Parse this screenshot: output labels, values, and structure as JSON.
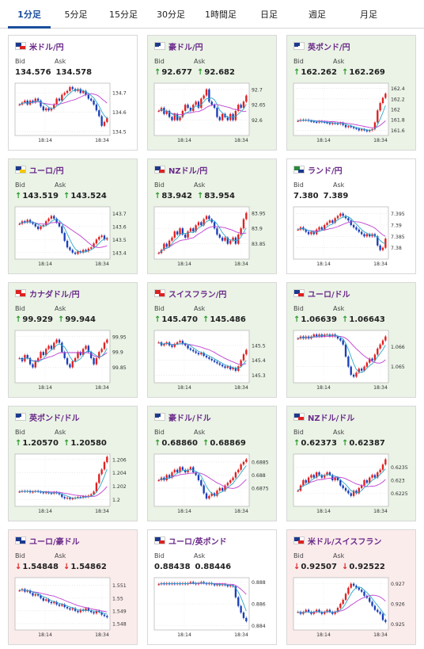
{
  "tabs": [
    {
      "label": "1分足",
      "active": true
    },
    {
      "label": "5分足",
      "active": false
    },
    {
      "label": "15分足",
      "active": false
    },
    {
      "label": "30分足",
      "active": false
    },
    {
      "label": "1時間足",
      "active": false
    },
    {
      "label": "日足",
      "active": false
    },
    {
      "label": "週足",
      "active": false
    },
    {
      "label": "月足",
      "active": false
    }
  ],
  "labels": {
    "bid": "Bid",
    "ask": "Ask"
  },
  "colors": {
    "up_candle": "#e02020",
    "down_candle": "#1a3fb8",
    "ma_short": "#2aa8c8",
    "ma_long": "#c040d0",
    "up_bg": "#eaf3e6",
    "down_bg": "#fbecec"
  },
  "cards": [
    {
      "pair": "米ドル/円",
      "flag": [
        "#1b3a8c",
        "#ffffff",
        "#d22"
      ],
      "trend": "none",
      "bid": "134.576",
      "ask": "134.578",
      "chart_data": {
        "type": "candlestick",
        "x_ticks": [
          "18:14",
          "18:34"
        ],
        "y_ticks": [
          "134.7",
          "134.6",
          "134.5"
        ],
        "y_range": [
          134.48,
          134.75
        ],
        "closes": [
          134.64,
          134.65,
          134.66,
          134.64,
          134.66,
          134.65,
          134.67,
          134.66,
          134.63,
          134.61,
          134.62,
          134.61,
          134.62,
          134.64,
          134.67,
          134.66,
          134.69,
          134.7,
          134.71,
          134.73,
          134.72,
          134.71,
          134.72,
          134.7,
          134.71,
          134.69,
          134.67,
          134.66,
          134.64,
          134.61,
          134.58,
          134.53,
          134.55,
          134.57
        ]
      }
    },
    {
      "pair": "豪ドル/円",
      "flag": [
        "#1b3a8c",
        "#1b3a8c",
        "#ffffff"
      ],
      "trend": "up",
      "bid": "92.677",
      "ask": "92.682",
      "chart_data": {
        "type": "candlestick",
        "x_ticks": [
          "18:14",
          "18:34"
        ],
        "y_ticks": [
          "92.7",
          "92.65",
          "92.6"
        ],
        "y_range": [
          92.55,
          92.72
        ],
        "closes": [
          92.63,
          92.64,
          92.62,
          92.63,
          92.61,
          92.6,
          92.62,
          92.6,
          92.61,
          92.63,
          92.65,
          92.64,
          92.63,
          92.65,
          92.66,
          92.64,
          92.67,
          92.68,
          92.7,
          92.66,
          92.65,
          92.64,
          92.61,
          92.6,
          92.62,
          92.61,
          92.6,
          92.62,
          92.6,
          92.63,
          92.65,
          92.64,
          92.66,
          92.68
        ]
      }
    },
    {
      "pair": "英ポンド/円",
      "flag": [
        "#1b3a8c",
        "#d22",
        "#ffffff"
      ],
      "trend": "up",
      "bid": "162.262",
      "ask": "162.269",
      "chart_data": {
        "type": "candlestick",
        "x_ticks": [
          "18:14",
          "18:34"
        ],
        "y_ticks": [
          "162.4",
          "162.2",
          "162",
          "161.8",
          "161.6"
        ],
        "y_range": [
          161.5,
          162.5
        ],
        "closes": [
          161.78,
          161.8,
          161.79,
          161.8,
          161.78,
          161.77,
          161.76,
          161.75,
          161.77,
          161.76,
          161.75,
          161.74,
          161.72,
          161.74,
          161.73,
          161.72,
          161.74,
          161.7,
          161.66,
          161.68,
          161.66,
          161.64,
          161.63,
          161.6,
          161.62,
          161.6,
          161.58,
          161.6,
          161.62,
          161.75,
          161.98,
          162.12,
          162.22,
          162.3
        ]
      }
    },
    {
      "pair": "ユーロ/円",
      "flag": [
        "#1b3a8c",
        "#1b3a8c",
        "#f0c800"
      ],
      "trend": "up",
      "bid": "143.519",
      "ask": "143.524",
      "chart_data": {
        "type": "candlestick",
        "x_ticks": [
          "18:14",
          "18:34"
        ],
        "y_ticks": [
          "143.7",
          "143.6",
          "143.5",
          "143.4"
        ],
        "y_range": [
          143.35,
          143.75
        ],
        "closes": [
          143.62,
          143.64,
          143.63,
          143.65,
          143.63,
          143.62,
          143.6,
          143.58,
          143.6,
          143.61,
          143.64,
          143.66,
          143.68,
          143.66,
          143.63,
          143.6,
          143.55,
          143.49,
          143.44,
          143.42,
          143.4,
          143.39,
          143.41,
          143.4,
          143.42,
          143.41,
          143.43,
          143.44,
          143.47,
          143.5,
          143.52,
          143.53,
          143.5,
          143.51
        ]
      }
    },
    {
      "pair": "NZドル/円",
      "flag": [
        "#1b3a8c",
        "#1b3a8c",
        "#d22"
      ],
      "trend": "up",
      "bid": "83.942",
      "ask": "83.954",
      "chart_data": {
        "type": "candlestick",
        "x_ticks": [
          "18:14",
          "18:34"
        ],
        "y_ticks": [
          "83.95",
          "83.9",
          "83.85"
        ],
        "y_range": [
          83.8,
          83.97
        ],
        "closes": [
          83.82,
          83.83,
          83.85,
          83.84,
          83.86,
          83.87,
          83.89,
          83.88,
          83.9,
          83.88,
          83.87,
          83.89,
          83.9,
          83.89,
          83.91,
          83.92,
          83.91,
          83.93,
          83.94,
          83.93,
          83.92,
          83.9,
          83.88,
          83.87,
          83.86,
          83.87,
          83.85,
          83.86,
          83.87,
          83.85,
          83.88,
          83.9,
          83.93,
          83.95
        ]
      }
    },
    {
      "pair": "ランド/円",
      "flag": [
        "#2a8a3a",
        "#f0c800",
        "#1b3a8c"
      ],
      "trend": "none",
      "bid": "7.380",
      "ask": "7.389",
      "chart_data": {
        "type": "candlestick",
        "x_ticks": [
          "18:14",
          "18:34"
        ],
        "y_ticks": [
          "7.395",
          "7.39",
          "7.385",
          "7.38"
        ],
        "y_range": [
          7.375,
          7.398
        ],
        "closes": [
          7.388,
          7.389,
          7.388,
          7.387,
          7.386,
          7.387,
          7.386,
          7.388,
          7.389,
          7.388,
          7.39,
          7.391,
          7.392,
          7.391,
          7.393,
          7.394,
          7.395,
          7.394,
          7.393,
          7.392,
          7.39,
          7.389,
          7.388,
          7.387,
          7.386,
          7.385,
          7.386,
          7.385,
          7.386,
          7.385,
          7.381,
          7.379,
          7.38,
          7.384
        ]
      }
    },
    {
      "pair": "カナダドル/円",
      "flag": [
        "#d22",
        "#ffffff",
        "#d22"
      ],
      "trend": "up",
      "bid": "99.929",
      "ask": "99.944",
      "chart_data": {
        "type": "candlestick",
        "x_ticks": [
          "18:14",
          "18:34"
        ],
        "y_ticks": [
          "99.95",
          "99.9",
          "99.85"
        ],
        "y_range": [
          99.8,
          99.97
        ],
        "closes": [
          99.88,
          99.87,
          99.89,
          99.88,
          99.86,
          99.85,
          99.87,
          99.88,
          99.9,
          99.89,
          99.91,
          99.92,
          99.91,
          99.93,
          99.94,
          99.93,
          99.9,
          99.88,
          99.86,
          99.85,
          99.87,
          99.88,
          99.9,
          99.89,
          99.91,
          99.92,
          99.9,
          99.88,
          99.86,
          99.88,
          99.9,
          99.91,
          99.93,
          99.94
        ]
      }
    },
    {
      "pair": "スイスフラン/円",
      "flag": [
        "#d22",
        "#d22",
        "#d22"
      ],
      "trend": "up",
      "bid": "145.470",
      "ask": "145.486",
      "chart_data": {
        "type": "candlestick",
        "x_ticks": [
          "18:14",
          "18:34"
        ],
        "y_ticks": [
          "145.5",
          "145.4",
          "145.3"
        ],
        "y_range": [
          145.25,
          145.6
        ],
        "closes": [
          145.52,
          145.5,
          145.51,
          145.52,
          145.5,
          145.49,
          145.51,
          145.52,
          145.53,
          145.51,
          145.5,
          145.48,
          145.47,
          145.46,
          145.45,
          145.44,
          145.45,
          145.43,
          145.42,
          145.41,
          145.4,
          145.39,
          145.38,
          145.37,
          145.36,
          145.35,
          145.36,
          145.34,
          145.35,
          145.33,
          145.36,
          145.4,
          145.44,
          145.47
        ]
      }
    },
    {
      "pair": "ユーロ/ドル",
      "flag": [
        "#1b3a8c",
        "#1b3a8c",
        "#d22"
      ],
      "trend": "up",
      "bid": "1.06639",
      "ask": "1.06643",
      "chart_data": {
        "type": "candlestick",
        "x_ticks": [
          "18:14",
          "18:34"
        ],
        "y_ticks": [
          "1.066",
          "1.065"
        ],
        "y_range": [
          1.0642,
          1.0668
        ],
        "closes": [
          1.0664,
          1.0665,
          1.0664,
          1.0665,
          1.0664,
          1.0665,
          1.0666,
          1.0665,
          1.0666,
          1.0665,
          1.0666,
          1.0666,
          1.0665,
          1.0666,
          1.0665,
          1.0664,
          1.0663,
          1.0661,
          1.0655,
          1.065,
          1.0646,
          1.0645,
          1.0647,
          1.0649,
          1.0648,
          1.065,
          1.0652,
          1.0654,
          1.0653,
          1.0656,
          1.0659,
          1.0661,
          1.0663,
          1.0665
        ]
      }
    },
    {
      "pair": "英ポンド/ドル",
      "flag": [
        "#1b3a8c",
        "#d22",
        "#ffffff"
      ],
      "trend": "up",
      "bid": "1.20570",
      "ask": "1.20580",
      "chart_data": {
        "type": "candlestick",
        "x_ticks": [
          "18:14",
          "18:34"
        ],
        "y_ticks": [
          "1.206",
          "1.204",
          "1.202",
          "1.2"
        ],
        "y_range": [
          1.199,
          1.2068
        ],
        "closes": [
          1.2012,
          1.2013,
          1.2012,
          1.2013,
          1.2011,
          1.2012,
          1.2013,
          1.2012,
          1.2011,
          1.201,
          1.2011,
          1.201,
          1.2009,
          1.2011,
          1.201,
          1.2008,
          1.2004,
          1.2002,
          1.2003,
          1.2001,
          1.2002,
          1.2003,
          1.2004,
          1.2003,
          1.2005,
          1.2004,
          1.2006,
          1.2008,
          1.2012,
          1.2025,
          1.2038,
          1.2045,
          1.2056,
          1.2064
        ]
      }
    },
    {
      "pair": "豪ドル/ドル",
      "flag": [
        "#1b3a8c",
        "#1b3a8c",
        "#ffffff"
      ],
      "trend": "up",
      "bid": "0.68860",
      "ask": "0.68869",
      "chart_data": {
        "type": "candlestick",
        "x_ticks": [
          "18:14",
          "18:34"
        ],
        "y_ticks": [
          "0.6885",
          "0.688",
          "0.6875"
        ],
        "y_range": [
          0.6868,
          0.6888
        ],
        "closes": [
          0.6878,
          0.6879,
          0.6878,
          0.688,
          0.6879,
          0.6881,
          0.6882,
          0.6881,
          0.6883,
          0.6882,
          0.6881,
          0.6882,
          0.6883,
          0.6881,
          0.688,
          0.6878,
          0.6876,
          0.6873,
          0.6871,
          0.6872,
          0.6873,
          0.6872,
          0.6874,
          0.6875,
          0.6874,
          0.6876,
          0.6877,
          0.6878,
          0.6879,
          0.6881,
          0.6882,
          0.6884,
          0.6885,
          0.6886
        ]
      }
    },
    {
      "pair": "NZドル/ドル",
      "flag": [
        "#1b3a8c",
        "#1b3a8c",
        "#d22"
      ],
      "trend": "up",
      "bid": "0.62373",
      "ask": "0.62387",
      "chart_data": {
        "type": "candlestick",
        "x_ticks": [
          "18:14",
          "18:34"
        ],
        "y_ticks": [
          "0.6235",
          "0.623",
          "0.6225"
        ],
        "y_range": [
          0.622,
          0.624
        ],
        "closes": [
          0.6226,
          0.6228,
          0.623,
          0.6229,
          0.6231,
          0.6232,
          0.6231,
          0.6233,
          0.6232,
          0.6231,
          0.6232,
          0.6233,
          0.6232,
          0.623,
          0.6231,
          0.623,
          0.6228,
          0.6227,
          0.6226,
          0.6225,
          0.6224,
          0.6226,
          0.6225,
          0.6227,
          0.6228,
          0.623,
          0.6229,
          0.6231,
          0.6232,
          0.6231,
          0.6233,
          0.6234,
          0.6236,
          0.6238
        ]
      }
    },
    {
      "pair": "ユーロ/豪ドル",
      "flag": [
        "#1b3a8c",
        "#1b3a8c",
        "#1b3a8c"
      ],
      "trend": "down",
      "bid": "1.54848",
      "ask": "1.54862",
      "chart_data": {
        "type": "candlestick",
        "x_ticks": [
          "18:14",
          "18:34"
        ],
        "y_ticks": [
          "1.551",
          "1.55",
          "1.549",
          "1.548"
        ],
        "y_range": [
          1.5475,
          1.5516
        ],
        "closes": [
          1.5506,
          1.5507,
          1.5505,
          1.5506,
          1.5504,
          1.5502,
          1.5503,
          1.5502,
          1.55,
          1.5498,
          1.5499,
          1.5497,
          1.5496,
          1.5497,
          1.5495,
          1.5494,
          1.5495,
          1.5493,
          1.5492,
          1.5491,
          1.5492,
          1.549,
          1.5489,
          1.5491,
          1.549,
          1.5492,
          1.549,
          1.5489,
          1.5488,
          1.549,
          1.5489,
          1.5487,
          1.5486,
          1.5485
        ]
      }
    },
    {
      "pair": "ユーロ/英ポンド",
      "flag": [
        "#1b3a8c",
        "#1b3a8c",
        "#d22"
      ],
      "trend": "none",
      "bid": "0.88438",
      "ask": "0.88446",
      "chart_data": {
        "type": "candlestick",
        "x_ticks": [
          "18:14",
          "18:34"
        ],
        "y_ticks": [
          "0.888",
          "0.886",
          "0.884"
        ],
        "y_range": [
          0.8836,
          0.8884
        ],
        "closes": [
          0.8878,
          0.8879,
          0.8878,
          0.8879,
          0.8878,
          0.8879,
          0.8878,
          0.8879,
          0.8878,
          0.8879,
          0.8878,
          0.8879,
          0.888,
          0.8879,
          0.8878,
          0.8879,
          0.888,
          0.8879,
          0.8878,
          0.8879,
          0.8878,
          0.8877,
          0.8878,
          0.8877,
          0.8878,
          0.8877,
          0.8876,
          0.8877,
          0.8876,
          0.8866,
          0.8858,
          0.8852,
          0.8847,
          0.8844
        ]
      }
    },
    {
      "pair": "米ドル/スイスフラン",
      "flag": [
        "#1b3a8c",
        "#ffffff",
        "#d22"
      ],
      "trend": "down",
      "bid": "0.92507",
      "ask": "0.92522",
      "chart_data": {
        "type": "candlestick",
        "x_ticks": [
          "18:14",
          "18:34"
        ],
        "y_ticks": [
          "0.927",
          "0.926",
          "0.925"
        ],
        "y_range": [
          0.9247,
          0.9273
        ],
        "closes": [
          0.9256,
          0.9255,
          0.9256,
          0.9257,
          0.9256,
          0.9255,
          0.9256,
          0.9257,
          0.9256,
          0.9255,
          0.9256,
          0.9257,
          0.9256,
          0.9255,
          0.9256,
          0.9258,
          0.926,
          0.9262,
          0.9265,
          0.9268,
          0.927,
          0.9269,
          0.9268,
          0.9267,
          0.9266,
          0.9264,
          0.9263,
          0.9261,
          0.9259,
          0.9257,
          0.9256,
          0.9255,
          0.9252,
          0.9251
        ]
      }
    }
  ]
}
